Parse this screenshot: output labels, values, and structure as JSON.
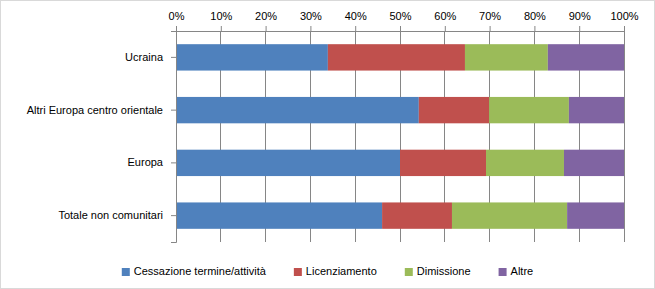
{
  "chart_data": {
    "type": "bar",
    "orientation": "horizontal",
    "stacked": true,
    "grid": true,
    "legend": "bottom",
    "categories": [
      "Ucraina",
      "Altri Europa centro orientale",
      "Europa",
      "Totale non comunitari"
    ],
    "series": [
      {
        "name": "Cessazione termine/attività",
        "color": "#4f81bd",
        "values": [
          33.9,
          54.2,
          50.0,
          46.0
        ]
      },
      {
        "name": "Licenziamento",
        "color": "#c0504d",
        "values": [
          30.6,
          15.7,
          19.2,
          15.6
        ]
      },
      {
        "name": "Dimissione",
        "color": "#9bbb59",
        "values": [
          18.5,
          17.8,
          17.4,
          25.7
        ]
      },
      {
        "name": "Altre",
        "color": "#8064a2",
        "values": [
          17.0,
          12.3,
          13.4,
          12.7
        ]
      }
    ],
    "xlim": [
      0,
      100
    ],
    "xticks": [
      {
        "value": 0,
        "label": "0%"
      },
      {
        "value": 10,
        "label": "10%"
      },
      {
        "value": 20,
        "label": "20%"
      },
      {
        "value": 30,
        "label": "30%"
      },
      {
        "value": 40,
        "label": "40%"
      },
      {
        "value": 50,
        "label": "50%"
      },
      {
        "value": 60,
        "label": "60%"
      },
      {
        "value": 70,
        "label": "70%"
      },
      {
        "value": 80,
        "label": "80%"
      },
      {
        "value": 90,
        "label": "90%"
      },
      {
        "value": 100,
        "label": "100%"
      }
    ]
  }
}
